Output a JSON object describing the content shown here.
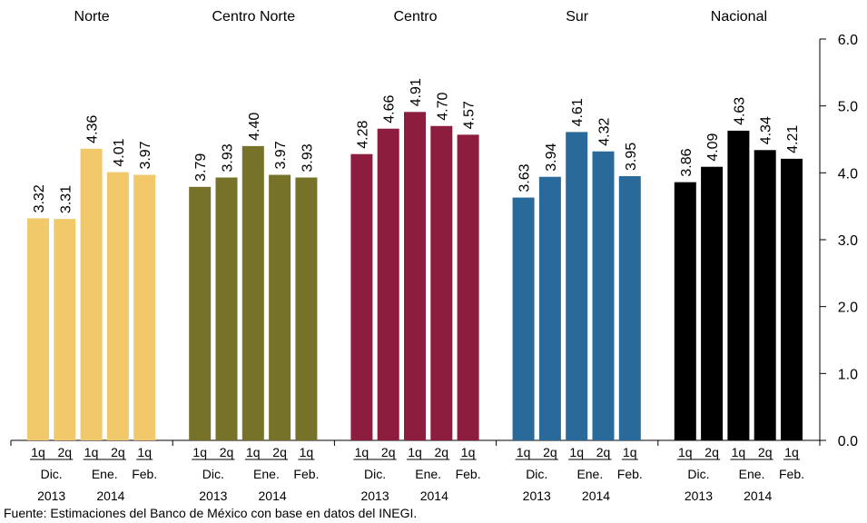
{
  "chart_data": {
    "type": "grouped_bar",
    "categories": [
      "1q",
      "2q",
      "1q",
      "2q",
      "1q"
    ],
    "months": [
      "Dic.",
      "Ene.",
      "Feb."
    ],
    "years": [
      "2013",
      "2014"
    ],
    "series": [
      {
        "name": "Norte",
        "color": "#f1c96b",
        "values": [
          3.32,
          3.31,
          4.36,
          4.01,
          3.97
        ],
        "value_labels": [
          "3.32",
          "3.31",
          "4.36",
          "4.01",
          "3.97"
        ]
      },
      {
        "name": "Centro Norte",
        "color": "#76722a",
        "values": [
          3.79,
          3.93,
          4.4,
          3.97,
          3.93
        ],
        "value_labels": [
          "3.79",
          "3.93",
          "4.40",
          "3.97",
          "3.93"
        ]
      },
      {
        "name": "Centro",
        "color": "#8c1d3f",
        "values": [
          4.28,
          4.66,
          4.91,
          4.7,
          4.57
        ],
        "value_labels": [
          "4.28",
          "4.66",
          "4.91",
          "4.70",
          "4.57"
        ]
      },
      {
        "name": "Sur",
        "color": "#2a6a9a",
        "values": [
          3.63,
          3.94,
          4.61,
          4.32,
          3.95
        ],
        "value_labels": [
          "3.63",
          "3.94",
          "4.61",
          "4.32",
          "3.95"
        ]
      },
      {
        "name": "Nacional",
        "color": "#000000",
        "values": [
          3.86,
          4.09,
          4.63,
          4.34,
          4.21
        ],
        "value_labels": [
          "3.86",
          "4.09",
          "4.63",
          "4.34",
          "4.21"
        ]
      }
    ],
    "ylim": [
      0,
      6
    ],
    "yticks": [
      {
        "value": 0,
        "label": "0.0"
      },
      {
        "value": 1,
        "label": "1.0"
      },
      {
        "value": 2,
        "label": "2.0"
      },
      {
        "value": 3,
        "label": "3.0"
      },
      {
        "value": 4,
        "label": "4.0"
      },
      {
        "value": 5,
        "label": "5.0"
      },
      {
        "value": 6,
        "label": "6.0"
      }
    ],
    "source": "Fuente: Estimaciones del Banco de México con base en datos del INEGI."
  }
}
